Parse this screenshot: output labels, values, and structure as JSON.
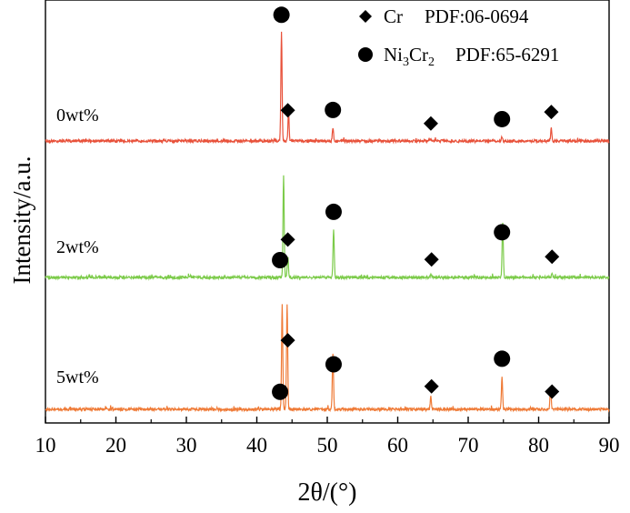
{
  "chart_data": {
    "type": "line",
    "xlabel": "2θ/(°)",
    "ylabel": "Intensity/a.u.",
    "xlim": [
      10,
      90
    ],
    "x_ticks": [
      "10",
      "20",
      "30",
      "40",
      "50",
      "60",
      "70",
      "80",
      "90"
    ],
    "grid": false,
    "legend_position": "top-right",
    "legend": [
      {
        "marker": "diamond",
        "phase": "Cr",
        "pdf": "PDF:06-0694"
      },
      {
        "marker": "circle",
        "phase_base": "Ni",
        "phase_sub1": "3",
        "phase_mid": "Cr",
        "phase_sub2": "2",
        "pdf": "PDF:65-6291"
      }
    ],
    "series": [
      {
        "name": "0wt%",
        "color": "#e8513a",
        "baseline": 0.0,
        "peaks": [
          {
            "x": 43.5,
            "h": 0.95
          },
          {
            "x": 44.5,
            "h": 0.25
          },
          {
            "x": 50.8,
            "h": 0.12
          },
          {
            "x": 64.6,
            "h": 0.02
          },
          {
            "x": 74.8,
            "h": 0.04
          },
          {
            "x": 81.8,
            "h": 0.11
          }
        ],
        "markers": [
          {
            "x": 43.5,
            "shape": "circle"
          },
          {
            "x": 44.4,
            "shape": "diamond"
          },
          {
            "x": 50.8,
            "shape": "circle"
          },
          {
            "x": 64.7,
            "shape": "diamond"
          },
          {
            "x": 74.8,
            "shape": "circle"
          },
          {
            "x": 81.8,
            "shape": "diamond"
          }
        ]
      },
      {
        "name": "2wt%",
        "color": "#7ccb4a",
        "baseline": 0.0,
        "peaks": [
          {
            "x": 43.8,
            "h": 0.95
          },
          {
            "x": 44.4,
            "h": 0.2
          },
          {
            "x": 50.9,
            "h": 0.45
          },
          {
            "x": 64.7,
            "h": 0.03
          },
          {
            "x": 74.9,
            "h": 0.52
          },
          {
            "x": 81.9,
            "h": 0.04
          }
        ],
        "markers": [
          {
            "x": 43.3,
            "shape": "circle"
          },
          {
            "x": 44.4,
            "shape": "diamond"
          },
          {
            "x": 50.9,
            "shape": "circle"
          },
          {
            "x": 64.8,
            "shape": "diamond"
          },
          {
            "x": 74.8,
            "shape": "circle"
          },
          {
            "x": 81.9,
            "shape": "diamond"
          }
        ]
      },
      {
        "name": "5wt%",
        "color": "#ef7a36",
        "baseline": 0.0,
        "peaks": [
          {
            "x": 43.6,
            "h": 0.95
          },
          {
            "x": 44.3,
            "h": 0.95
          },
          {
            "x": 50.8,
            "h": 0.5
          },
          {
            "x": 64.7,
            "h": 0.12
          },
          {
            "x": 74.8,
            "h": 0.3
          },
          {
            "x": 81.7,
            "h": 0.2
          }
        ],
        "markers": [
          {
            "x": 43.3,
            "shape": "circle"
          },
          {
            "x": 44.4,
            "shape": "diamond"
          },
          {
            "x": 50.9,
            "shape": "circle"
          },
          {
            "x": 64.8,
            "shape": "diamond"
          },
          {
            "x": 74.8,
            "shape": "circle"
          },
          {
            "x": 81.9,
            "shape": "diamond"
          }
        ]
      }
    ]
  }
}
